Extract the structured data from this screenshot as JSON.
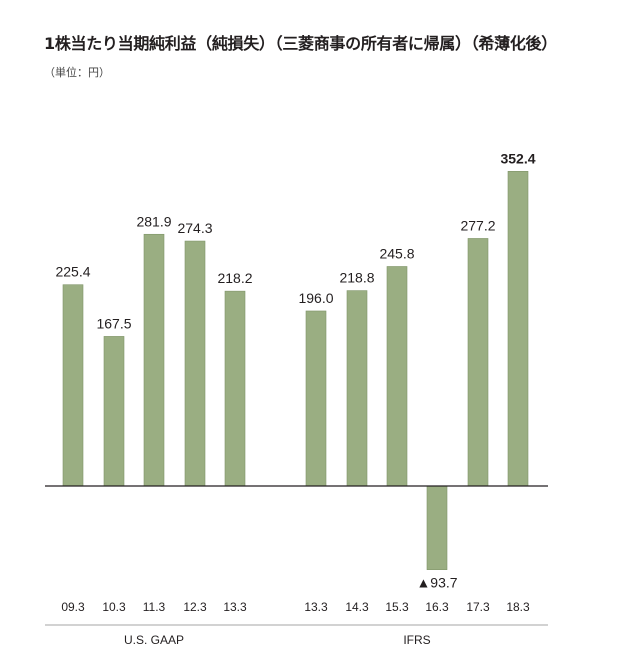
{
  "title": "1株当たり当期純利益（純損失）（三菱商事の所有者に帰属）（希薄化後）",
  "unit_label": "（単位：円）",
  "colors": {
    "bar": "#9aae82",
    "bar_stroke": "#7f9468",
    "axis": "#231f20",
    "separator": "#888888"
  },
  "chart_data": {
    "type": "bar",
    "title": "1株当たり当期純利益（純損失）（三菱商事の所有者に帰属）（希薄化後）",
    "unit": "円",
    "categories": [
      "09.3",
      "10.3",
      "11.3",
      "12.3",
      "13.3",
      "13.3",
      "14.3",
      "15.3",
      "16.3",
      "17.3",
      "18.3"
    ],
    "values": [
      225.4,
      167.5,
      281.9,
      274.3,
      218.2,
      196.0,
      218.8,
      245.8,
      -93.7,
      277.2,
      352.4
    ],
    "labels": [
      "225.4",
      "167.5",
      "281.9",
      "274.3",
      "218.2",
      "196.0",
      "218.8",
      "245.8",
      "▲93.7",
      "277.2",
      "352.4"
    ],
    "groups": [
      {
        "name": "U.S. GAAP",
        "start": 0,
        "end": 4
      },
      {
        "name": "IFRS",
        "start": 5,
        "end": 10
      }
    ],
    "highlight_index": 10,
    "xlabel": "",
    "ylabel": "",
    "grid": false
  }
}
